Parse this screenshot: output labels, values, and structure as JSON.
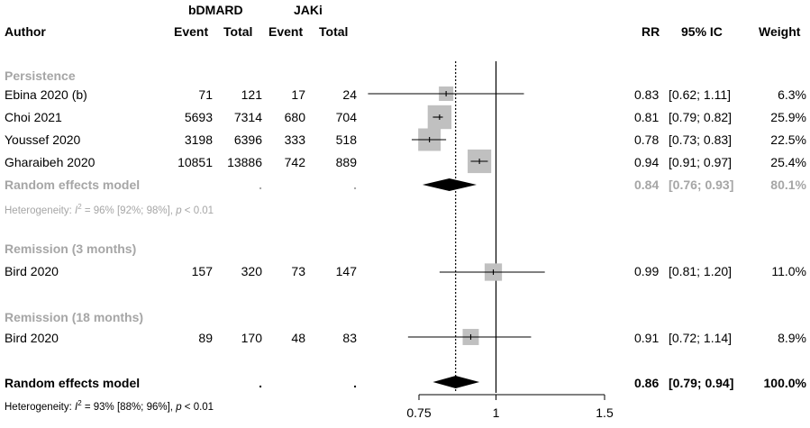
{
  "header": {
    "group1": "bDMARD",
    "group2": "JAKi",
    "author": "Author",
    "event": "Event",
    "total": "Total",
    "rr": "RR",
    "ci": "95% IC",
    "weight": "Weight"
  },
  "sections": [
    {
      "title": "Persistence",
      "studies": [
        {
          "author": "Ebina 2020 (b)",
          "e1": "71",
          "t1": "121",
          "e2": "17",
          "t2": "24",
          "rr_text": "0.83",
          "ci_text": "[0.62; 1.11]",
          "w_text": "6.3%"
        },
        {
          "author": "Choi 2021",
          "e1": "5693",
          "t1": "7314",
          "e2": "680",
          "t2": "704",
          "rr_text": "0.81",
          "ci_text": "[0.79; 0.82]",
          "w_text": "25.9%"
        },
        {
          "author": "Youssef 2020",
          "e1": "3198",
          "t1": "6396",
          "e2": "333",
          "t2": "518",
          "rr_text": "0.78",
          "ci_text": "[0.73; 0.83]",
          "w_text": "22.5%"
        },
        {
          "author": "Gharaibeh 2020",
          "e1": "10851",
          "t1": "13886",
          "e2": "742",
          "t2": "889",
          "rr_text": "0.94",
          "ci_text": "[0.91; 0.97]",
          "w_text": "25.4%"
        }
      ],
      "summary": {
        "label": "Random effects model",
        "e1": ".",
        "t1": ".",
        "rr_text": "0.84",
        "ci_text": "[0.76; 0.93]",
        "w_text": "80.1%"
      },
      "heterogeneity": {
        "pre": "Heterogeneity: ",
        "i": "I",
        "sup": "2",
        "post": " = 96% [92%; 98%], ",
        "p": "p",
        "post2": " < 0.01"
      }
    },
    {
      "title": "Remission (3 months)",
      "studies": [
        {
          "author": "Bird 2020",
          "e1": "157",
          "t1": "320",
          "e2": "73",
          "t2": "147",
          "rr_text": "0.99",
          "ci_text": "[0.81; 1.20]",
          "w_text": "11.0%"
        }
      ]
    },
    {
      "title": "Remission (18 months)",
      "studies": [
        {
          "author": "Bird 2020",
          "e1": "89",
          "t1": "170",
          "e2": "48",
          "t2": "83",
          "rr_text": "0.91",
          "ci_text": "[0.72; 1.14]",
          "w_text": "8.9%"
        }
      ]
    }
  ],
  "overall": {
    "label": "Random effects model",
    "e1": ".",
    "t1": ".",
    "rr_text": "0.86",
    "ci_text": "[0.79; 0.94]",
    "w_text": "100.0%",
    "heterogeneity": {
      "pre": "Heterogeneity: ",
      "i": "I",
      "sup": "2",
      "post": " = 93% [88%; 96%], ",
      "p": "p",
      "post2": " < 0.01"
    }
  },
  "chart_data": {
    "type": "forest",
    "xlim": [
      0.7,
      1.5
    ],
    "ticks": [
      0.75,
      1,
      1.5
    ],
    "tick_labels": [
      "0.75",
      "1",
      "1.5"
    ],
    "null_value": 1,
    "overall_estimate": 0.86,
    "studies": [
      {
        "label": "Ebina 2020 (b)",
        "rr": 0.83,
        "lo": 0.62,
        "hi": 1.11,
        "weight": 6.3
      },
      {
        "label": "Choi 2021",
        "rr": 0.81,
        "lo": 0.79,
        "hi": 0.82,
        "weight": 25.9
      },
      {
        "label": "Youssef 2020",
        "rr": 0.78,
        "lo": 0.73,
        "hi": 0.83,
        "weight": 22.5
      },
      {
        "label": "Gharaibeh 2020",
        "rr": 0.94,
        "lo": 0.91,
        "hi": 0.97,
        "weight": 25.4
      },
      {
        "label": "Bird 2020",
        "rr": 0.99,
        "lo": 0.81,
        "hi": 1.2,
        "weight": 11.0
      },
      {
        "label": "Bird 2020",
        "rr": 0.91,
        "lo": 0.72,
        "hi": 1.14,
        "weight": 8.9
      }
    ],
    "summaries": [
      {
        "label": "Random effects model",
        "rr": 0.84,
        "lo": 0.76,
        "hi": 0.93,
        "weight": 80.1,
        "color": "#000000"
      },
      {
        "label": "Random effects model",
        "rr": 0.86,
        "lo": 0.79,
        "hi": 0.94,
        "weight": 100.0,
        "color": "#000000"
      }
    ],
    "colors": {
      "square": "#c0c0c0",
      "ci": "#000000",
      "diamond": "#000000",
      "grey_text": "#a6a6a6"
    }
  }
}
